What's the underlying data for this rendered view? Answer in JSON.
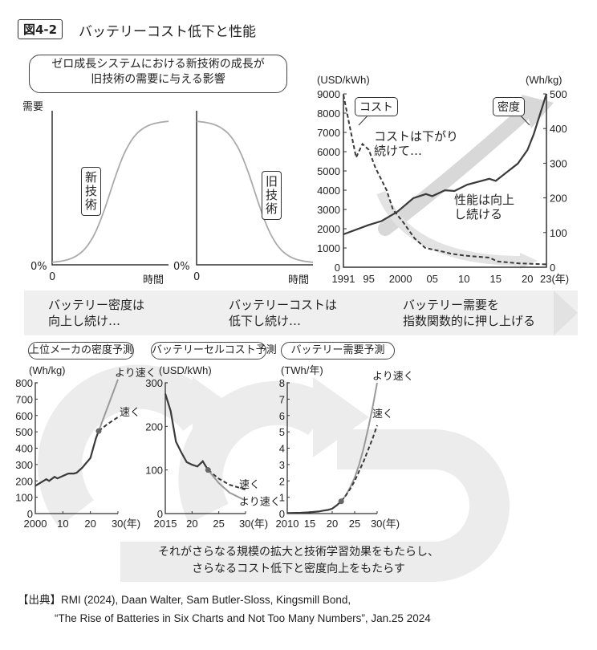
{
  "header": {
    "figure_no": "図4-2",
    "title": "バッテリーコスト低下と性能"
  },
  "concept": {
    "bubble_line1": "ゼロ成長システムにおける新技術の成長が",
    "bubble_line2": "旧技術の需要に与える影響",
    "y_label": "需要",
    "zero_pct": "0%",
    "zero": "0",
    "x_label": "時間",
    "new_tech": "新技術",
    "old_tech": "旧技術"
  },
  "bands": [
    {
      "line1": "バッテリー密度は",
      "line2": "向上し続け…"
    },
    {
      "line1": "バッテリーコストは",
      "line2": "低下し続け…"
    },
    {
      "line1": "バッテリー需要を",
      "line2": "指数関数的に押し上げる"
    }
  ],
  "footer": {
    "line1": "それがさらなる規模の拡大と技術学習効果をもたらし、",
    "line2": "さらなるコスト低下と密度向上をもたらす"
  },
  "source": {
    "line1": "【出典】RMI (2024), Daan Walter, Sam Butler-Sloss, Kingsmill Bond,",
    "line2": "“The Rise of Batteries in Six Charts and Not Too Many Numbers”, Jan.25 2024"
  },
  "colors": {
    "line_dark": "#3a3a3a",
    "line_gray": "#9a9a9a",
    "arrow_gray": "#d8d8d8",
    "background_arrow": "#ececec"
  },
  "chart_data": [
    {
      "type": "line",
      "id": "cost-density",
      "ylabel_left": "(USD/kWh)",
      "ylabel_right": "(Wh/kg)",
      "ylim_left": [
        0,
        9000
      ],
      "ylim_right": [
        0,
        500
      ],
      "xlim": [
        1991,
        2023
      ],
      "yticks_left": [
        "0",
        "1000",
        "2000",
        "3000",
        "4000",
        "5000",
        "6000",
        "7000",
        "8000",
        "9000"
      ],
      "yticks_right": [
        "0",
        "100",
        "200",
        "300",
        "400",
        "500"
      ],
      "xticks": [
        {
          "x": 1991,
          "label": "1991"
        },
        {
          "x": 1995,
          "label": "95"
        },
        {
          "x": 2000,
          "label": "2000"
        },
        {
          "x": 2005,
          "label": "05"
        },
        {
          "x": 2010,
          "label": "10"
        },
        {
          "x": 2015,
          "label": "15"
        },
        {
          "x": 2020,
          "label": "20"
        },
        {
          "x": 2023,
          "label": "23(年)"
        }
      ],
      "series": [
        {
          "name": "コスト",
          "axis": "left",
          "style": "dashed",
          "x": [
            1991,
            1992,
            1993,
            1994,
            1995,
            1996,
            1997.8,
            1998.8,
            2000.5,
            2002.2,
            2003.9,
            2006.8,
            2008,
            2010.2,
            2014,
            2015.3,
            2018.7,
            2023
          ],
          "y": [
            8950,
            7300,
            5700,
            6400,
            6100,
            5200,
            4000,
            3000,
            2300,
            1500,
            1000,
            800,
            700,
            600,
            500,
            300,
            200,
            150
          ]
        },
        {
          "name": "密度",
          "axis": "right",
          "style": "solid",
          "x": [
            1991,
            1995,
            1997,
            1999.5,
            2002,
            2004,
            2005,
            2007,
            2008.5,
            2010.5,
            2014,
            2015,
            2018.5,
            2020,
            2021,
            2023
          ],
          "y": [
            95,
            122,
            133,
            160,
            199,
            211,
            205,
            222,
            220,
            238,
            255,
            249,
            299,
            338,
            384,
            500
          ]
        }
      ],
      "annotations": [
        "コストは下がり",
        "続けて…",
        "性能は向上",
        "し続ける"
      ]
    },
    {
      "type": "line",
      "id": "density-forecast",
      "title": "上位メーカの密度予測",
      "ylabel": "(Wh/kg)",
      "ylim": [
        0,
        800
      ],
      "xlim": [
        2000,
        2030
      ],
      "yticks": [
        "0",
        "100",
        "200",
        "300",
        "400",
        "500",
        "600",
        "700",
        "800"
      ],
      "xticks": [
        {
          "x": 2000,
          "label": "2000"
        },
        {
          "x": 2010,
          "label": "10"
        },
        {
          "x": 2020,
          "label": "20"
        },
        {
          "x": 2030,
          "label": "30(年)"
        }
      ],
      "history": {
        "x": [
          2000,
          2002,
          2004,
          2005,
          2007,
          2008,
          2010,
          2012,
          2014,
          2015,
          2017,
          2020,
          2022,
          2023
        ],
        "y": [
          170,
          190,
          210,
          200,
          225,
          215,
          230,
          245,
          245,
          250,
          280,
          340,
          460,
          505
        ]
      },
      "series": [
        {
          "name": "より速く",
          "style": "solid",
          "x": [
            2023,
            2030
          ],
          "y": [
            505,
            820
          ]
        },
        {
          "name": "速く",
          "style": "dashed",
          "x": [
            2023,
            2026,
            2030
          ],
          "y": [
            505,
            545,
            590
          ]
        }
      ]
    },
    {
      "type": "line",
      "id": "cell-cost-forecast",
      "title": "バッテリーセルコスト予測",
      "ylabel": "(USD/kWh)",
      "ylim": [
        0,
        300
      ],
      "xlim": [
        2015,
        2030
      ],
      "yticks": [
        "0",
        "100",
        "200",
        "300"
      ],
      "xticks": [
        {
          "x": 2015,
          "label": "2015"
        },
        {
          "x": 2020,
          "label": "20"
        },
        {
          "x": 2025,
          "label": "25"
        },
        {
          "x": 2030,
          "label": "30(年)"
        }
      ],
      "history": {
        "x": [
          2015,
          2016,
          2017,
          2018,
          2019,
          2020,
          2021,
          2022,
          2023
        ],
        "y": [
          275,
          235,
          165,
          140,
          118,
          112,
          108,
          120,
          100
        ]
      },
      "series": [
        {
          "name": "速く",
          "style": "dashed",
          "x": [
            2023,
            2025,
            2027,
            2030
          ],
          "y": [
            100,
            80,
            66,
            55
          ]
        },
        {
          "name": "より速く",
          "style": "solid",
          "x": [
            2023,
            2025,
            2027,
            2030
          ],
          "y": [
            100,
            70,
            48,
            30
          ]
        }
      ]
    },
    {
      "type": "line",
      "id": "demand-forecast",
      "title": "バッテリー需要予測",
      "ylabel": "(TWh/年)",
      "ylim": [
        0,
        8
      ],
      "xlim": [
        2010,
        2030
      ],
      "yticks": [
        "0",
        "1",
        "2",
        "3",
        "4",
        "5",
        "6",
        "7",
        "8"
      ],
      "xticks": [
        {
          "x": 2010,
          "label": "2010"
        },
        {
          "x": 2015,
          "label": "15"
        },
        {
          "x": 2020,
          "label": "20"
        },
        {
          "x": 2025,
          "label": "25"
        },
        {
          "x": 2030,
          "label": "30(年)"
        }
      ],
      "history": {
        "x": [
          2010,
          2013,
          2015,
          2017,
          2018,
          2019,
          2020,
          2021,
          2022
        ],
        "y": [
          0.03,
          0.05,
          0.08,
          0.13,
          0.18,
          0.22,
          0.3,
          0.5,
          0.75
        ]
      },
      "series": [
        {
          "name": "より速く",
          "style": "solid",
          "x": [
            2022,
            2023,
            2024,
            2025,
            2026,
            2027,
            2028,
            2029,
            2030
          ],
          "y": [
            0.75,
            1.1,
            1.6,
            2.2,
            3.0,
            4.0,
            5.2,
            6.5,
            8.0
          ]
        },
        {
          "name": "速く",
          "style": "dashed",
          "x": [
            2022,
            2023,
            2024,
            2025,
            2026,
            2027,
            2028,
            2029,
            2030
          ],
          "y": [
            0.75,
            1.1,
            1.5,
            2.0,
            2.6,
            3.2,
            3.9,
            4.6,
            5.4
          ]
        }
      ]
    }
  ]
}
